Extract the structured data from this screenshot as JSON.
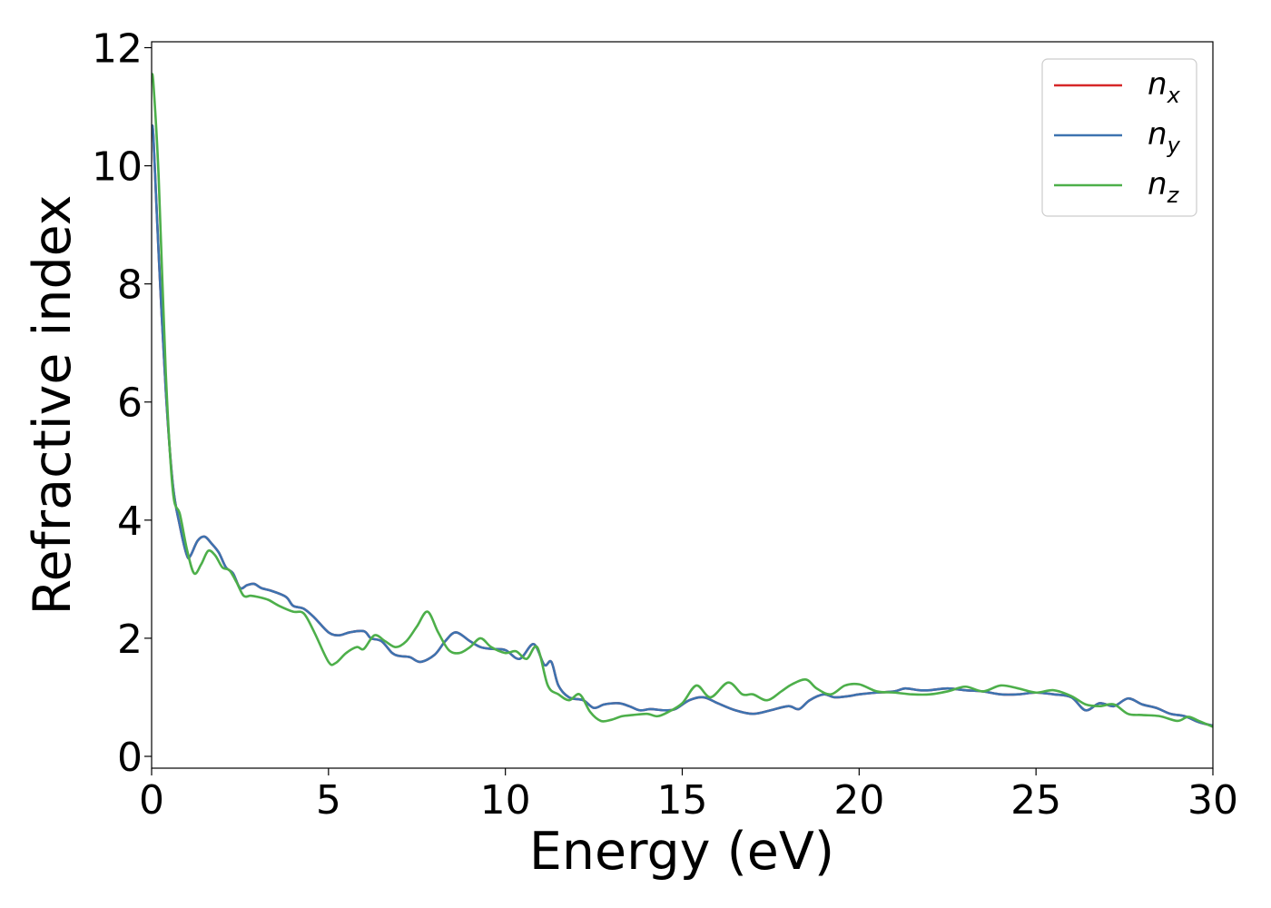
{
  "chart_data": {
    "type": "line",
    "xlabel": "Energy (eV)",
    "ylabel": "Refractive index",
    "xlim": [
      0,
      30
    ],
    "ylim": [
      -0.2,
      12.1
    ],
    "xticks": [
      0,
      5,
      10,
      15,
      20,
      25,
      30
    ],
    "yticks": [
      0,
      2,
      4,
      6,
      8,
      10,
      12
    ],
    "grid": false,
    "legend_position": "top-right",
    "series": [
      {
        "name": "n_x",
        "legend_base": "n",
        "legend_sub": "x",
        "color": "#d62728",
        "x": [
          0,
          0.05,
          0.2,
          0.4,
          0.6,
          0.8,
          1.0,
          1.1,
          1.3,
          1.5,
          1.7,
          1.9,
          2.1,
          2.3,
          2.5,
          2.7,
          2.9,
          3.1,
          3.4,
          3.8,
          4.0,
          4.3,
          4.6,
          5.0,
          5.3,
          5.6,
          6.0,
          6.2,
          6.5,
          6.8,
          7.0,
          7.3,
          7.6,
          8.0,
          8.3,
          8.6,
          9.0,
          9.3,
          9.6,
          10.0,
          10.4,
          10.8,
          11.1,
          11.3,
          11.5,
          11.8,
          12.2,
          12.5,
          12.8,
          13.2,
          13.5,
          13.8,
          14.1,
          14.5,
          14.8,
          15.2,
          15.6,
          16.0,
          16.5,
          17.0,
          17.5,
          18.0,
          18.3,
          18.6,
          19.0,
          19.3,
          19.7,
          20.0,
          20.5,
          21.0,
          21.3,
          21.7,
          22.0,
          22.5,
          23.0,
          23.5,
          24.0,
          24.5,
          25.0,
          25.5,
          26.0,
          26.4,
          26.8,
          27.2,
          27.6,
          28.0,
          28.4,
          28.8,
          29.2,
          29.6,
          30.0
        ],
        "y": [
          10.6,
          10.5,
          8.5,
          6.2,
          4.6,
          3.9,
          3.4,
          3.4,
          3.65,
          3.72,
          3.6,
          3.45,
          3.2,
          3.1,
          2.85,
          2.9,
          2.92,
          2.85,
          2.8,
          2.7,
          2.55,
          2.5,
          2.35,
          2.1,
          2.05,
          2.1,
          2.12,
          2.0,
          1.95,
          1.75,
          1.7,
          1.68,
          1.6,
          1.72,
          1.95,
          2.1,
          1.95,
          1.85,
          1.82,
          1.8,
          1.65,
          1.9,
          1.55,
          1.6,
          1.2,
          1.0,
          0.95,
          0.82,
          0.88,
          0.9,
          0.85,
          0.78,
          0.8,
          0.78,
          0.8,
          0.95,
          1.0,
          0.9,
          0.78,
          0.72,
          0.78,
          0.85,
          0.8,
          0.95,
          1.05,
          1.0,
          1.02,
          1.05,
          1.08,
          1.1,
          1.15,
          1.12,
          1.12,
          1.15,
          1.12,
          1.1,
          1.05,
          1.05,
          1.08,
          1.05,
          1.0,
          0.78,
          0.9,
          0.85,
          0.98,
          0.88,
          0.82,
          0.72,
          0.68,
          0.58,
          0.52
        ]
      },
      {
        "name": "n_y",
        "legend_base": "n",
        "legend_sub": "y",
        "color": "#3d73b0",
        "x": [
          0,
          0.05,
          0.2,
          0.4,
          0.6,
          0.8,
          1.0,
          1.1,
          1.3,
          1.5,
          1.7,
          1.9,
          2.1,
          2.3,
          2.5,
          2.7,
          2.9,
          3.1,
          3.4,
          3.8,
          4.0,
          4.3,
          4.6,
          5.0,
          5.3,
          5.6,
          6.0,
          6.2,
          6.5,
          6.8,
          7.0,
          7.3,
          7.6,
          8.0,
          8.3,
          8.6,
          9.0,
          9.3,
          9.6,
          10.0,
          10.4,
          10.8,
          11.1,
          11.3,
          11.5,
          11.8,
          12.2,
          12.5,
          12.8,
          13.2,
          13.5,
          13.8,
          14.1,
          14.5,
          14.8,
          15.2,
          15.6,
          16.0,
          16.5,
          17.0,
          17.5,
          18.0,
          18.3,
          18.6,
          19.0,
          19.3,
          19.7,
          20.0,
          20.5,
          21.0,
          21.3,
          21.7,
          22.0,
          22.5,
          23.0,
          23.5,
          24.0,
          24.5,
          25.0,
          25.5,
          26.0,
          26.4,
          26.8,
          27.2,
          27.6,
          28.0,
          28.4,
          28.8,
          29.2,
          29.6,
          30.0
        ],
        "y": [
          10.6,
          10.5,
          8.5,
          6.2,
          4.6,
          3.9,
          3.4,
          3.4,
          3.65,
          3.72,
          3.6,
          3.45,
          3.2,
          3.1,
          2.85,
          2.9,
          2.92,
          2.85,
          2.8,
          2.7,
          2.55,
          2.5,
          2.35,
          2.1,
          2.05,
          2.1,
          2.12,
          2.0,
          1.95,
          1.75,
          1.7,
          1.68,
          1.6,
          1.72,
          1.95,
          2.1,
          1.95,
          1.85,
          1.82,
          1.8,
          1.65,
          1.9,
          1.55,
          1.6,
          1.2,
          1.0,
          0.95,
          0.82,
          0.88,
          0.9,
          0.85,
          0.78,
          0.8,
          0.78,
          0.8,
          0.95,
          1.0,
          0.9,
          0.78,
          0.72,
          0.78,
          0.85,
          0.8,
          0.95,
          1.05,
          1.0,
          1.02,
          1.05,
          1.08,
          1.1,
          1.15,
          1.12,
          1.12,
          1.15,
          1.12,
          1.1,
          1.05,
          1.05,
          1.08,
          1.05,
          1.0,
          0.78,
          0.9,
          0.85,
          0.98,
          0.88,
          0.82,
          0.72,
          0.68,
          0.58,
          0.52
        ]
      },
      {
        "name": "n_z",
        "legend_base": "n",
        "legend_sub": "z",
        "color": "#4daf4a",
        "x": [
          0,
          0.05,
          0.2,
          0.4,
          0.6,
          0.8,
          1.0,
          1.2,
          1.4,
          1.6,
          1.8,
          2.0,
          2.2,
          2.4,
          2.6,
          2.8,
          3.0,
          3.3,
          3.6,
          4.0,
          4.3,
          4.6,
          5.0,
          5.2,
          5.5,
          5.8,
          6.0,
          6.3,
          6.6,
          6.9,
          7.2,
          7.5,
          7.8,
          8.1,
          8.4,
          8.7,
          9.0,
          9.3,
          9.6,
          10.0,
          10.3,
          10.6,
          10.9,
          11.2,
          11.5,
          11.8,
          12.1,
          12.4,
          12.7,
          13.0,
          13.3,
          13.6,
          14.0,
          14.3,
          14.6,
          15.0,
          15.4,
          15.8,
          16.3,
          16.7,
          17.0,
          17.4,
          17.8,
          18.1,
          18.5,
          18.8,
          19.2,
          19.6,
          20.0,
          20.5,
          21.0,
          21.5,
          22.0,
          22.5,
          23.0,
          23.5,
          24.0,
          24.5,
          25.0,
          25.5,
          26.0,
          26.4,
          26.8,
          27.2,
          27.6,
          28.0,
          28.5,
          29.0,
          29.3,
          29.6,
          30.0
        ],
        "y": [
          11.5,
          11.4,
          9.8,
          6.5,
          4.5,
          4.1,
          3.5,
          3.1,
          3.25,
          3.48,
          3.4,
          3.2,
          3.15,
          2.95,
          2.72,
          2.72,
          2.7,
          2.65,
          2.55,
          2.45,
          2.42,
          2.1,
          1.6,
          1.58,
          1.75,
          1.85,
          1.82,
          2.05,
          1.95,
          1.85,
          1.95,
          2.2,
          2.45,
          2.1,
          1.8,
          1.75,
          1.85,
          2.0,
          1.85,
          1.75,
          1.78,
          1.65,
          1.85,
          1.2,
          1.05,
          0.95,
          1.05,
          0.75,
          0.6,
          0.62,
          0.68,
          0.7,
          0.72,
          0.68,
          0.75,
          0.9,
          1.2,
          1.0,
          1.25,
          1.05,
          1.05,
          0.95,
          1.1,
          1.22,
          1.3,
          1.15,
          1.05,
          1.2,
          1.22,
          1.1,
          1.08,
          1.05,
          1.05,
          1.1,
          1.18,
          1.1,
          1.2,
          1.15,
          1.08,
          1.12,
          1.02,
          0.88,
          0.85,
          0.88,
          0.72,
          0.7,
          0.68,
          0.6,
          0.67,
          0.6,
          0.5
        ]
      }
    ]
  }
}
